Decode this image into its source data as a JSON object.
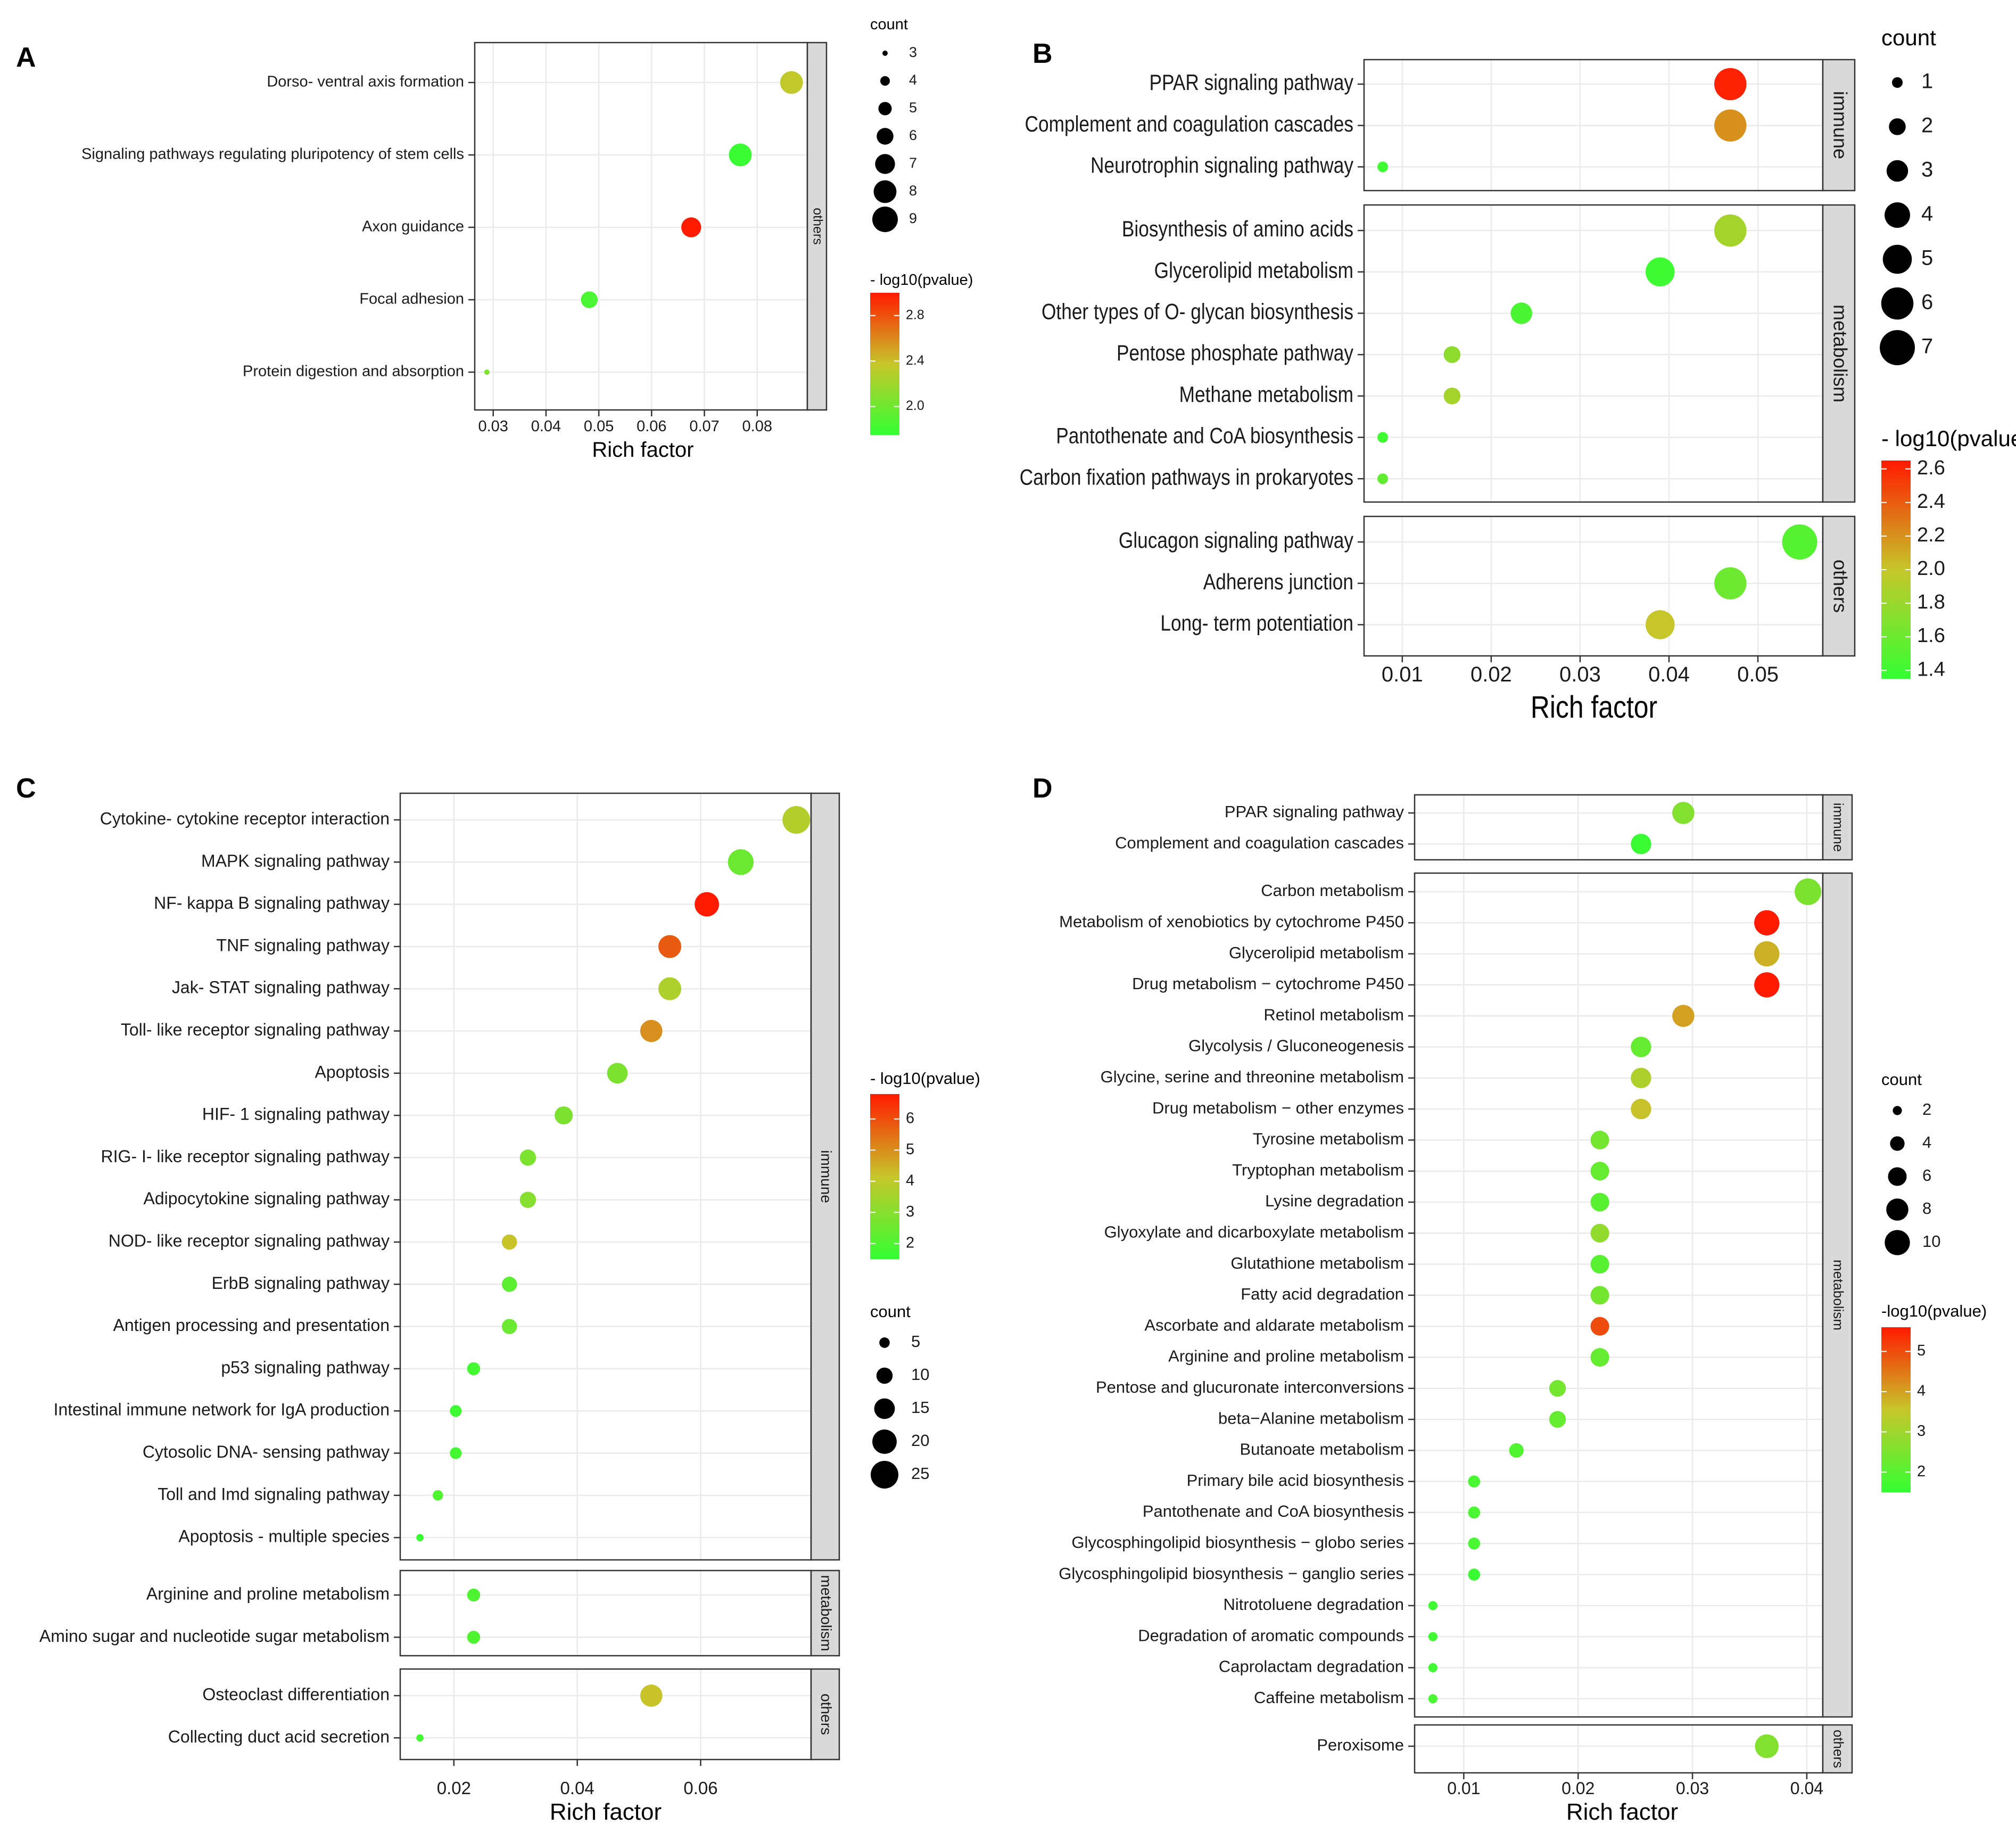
{
  "figure": {
    "colors": {
      "low": "#33FF33",
      "mid": "#C6C62A",
      "high": "#FF1A00",
      "panel_bg": "#FFFFFF",
      "grid": "#EBEBEB",
      "strip_bg": "#D9D9D9"
    }
  },
  "chart_data": [
    {
      "panel": "A",
      "type": "scatter",
      "xlabel": "Rich factor",
      "xlim": [
        0.0265,
        0.0895
      ],
      "xticks": [
        "0.03",
        "0.04",
        "0.05",
        "0.06",
        "0.07",
        "0.08"
      ],
      "size_legend_title": "count",
      "size_range": [
        3,
        9
      ],
      "size_legend": [
        "3",
        "4",
        "5",
        "6",
        "7",
        "8",
        "9"
      ],
      "color_legend_title": "- log10(pvalue)",
      "color_range": [
        1.75,
        3.0
      ],
      "color_legend": [
        "2.8",
        "2.4",
        "2.0"
      ],
      "facets": [
        {
          "label": "others",
          "rows": [
            {
              "term": "Dorso- ventral axis formation",
              "x": 0.0865,
              "count": 8,
              "p": 2.35
            },
            {
              "term": "Signaling pathways regulating pluripotency of stem cells",
              "x": 0.0768,
              "count": 8,
              "p": 1.78
            },
            {
              "term": "Axon guidance",
              "x": 0.0675,
              "count": 7,
              "p": 3.0
            },
            {
              "term": "Focal adhesion",
              "x": 0.0482,
              "count": 6,
              "p": 1.85
            },
            {
              "term": "Protein digestion and absorption",
              "x": 0.0288,
              "count": 3,
              "p": 2.05
            }
          ]
        }
      ]
    },
    {
      "panel": "B",
      "type": "scatter",
      "xlabel": "Rich factor",
      "xlim": [
        0.0057,
        0.0573
      ],
      "xticks": [
        "0.01",
        "0.02",
        "0.03",
        "0.04",
        "0.05"
      ],
      "size_legend_title": "count",
      "size_range": [
        1,
        7
      ],
      "size_legend": [
        "1",
        "2",
        "3",
        "4",
        "5",
        "6",
        "7"
      ],
      "color_legend_title": "- log10(pvalue)",
      "color_range": [
        1.35,
        2.65
      ],
      "color_legend": [
        "2.6",
        "2.4",
        "2.2",
        "2.0",
        "1.8",
        "1.6",
        "1.4"
      ],
      "facets": [
        {
          "label": "immune",
          "rows": [
            {
              "term": "PPAR signaling pathway",
              "x": 0.0469,
              "count": 6,
              "p": 2.62
            },
            {
              "term": "Complement and coagulation cascades",
              "x": 0.0469,
              "count": 6,
              "p": 2.2
            },
            {
              "term": "Neurotrophin signaling pathway",
              "x": 0.0078,
              "count": 1,
              "p": 1.4
            }
          ]
        },
        {
          "label": "metabolism",
          "rows": [
            {
              "term": "Biosynthesis of amino acids",
              "x": 0.0469,
              "count": 6,
              "p": 1.85
            },
            {
              "term": "Glycerolipid metabolism",
              "x": 0.039,
              "count": 5,
              "p": 1.4
            },
            {
              "term": "Other types of O- glycan biosynthesis",
              "x": 0.0234,
              "count": 3,
              "p": 1.45
            },
            {
              "term": "Pentose phosphate pathway",
              "x": 0.0156,
              "count": 2,
              "p": 1.75
            },
            {
              "term": "Methane metabolism",
              "x": 0.0156,
              "count": 2,
              "p": 1.85
            },
            {
              "term": "Pantothenate and CoA biosynthesis",
              "x": 0.0078,
              "count": 1,
              "p": 1.4
            },
            {
              "term": "Carbon fixation pathways in prokaryotes",
              "x": 0.0078,
              "count": 1,
              "p": 1.55
            }
          ]
        },
        {
          "label": "others",
          "rows": [
            {
              "term": "Glucagon signaling pathway",
              "x": 0.0547,
              "count": 7,
              "p": 1.5
            },
            {
              "term": "Adherens junction",
              "x": 0.0469,
              "count": 6,
              "p": 1.6
            },
            {
              "term": "Long- term potentiation",
              "x": 0.039,
              "count": 5,
              "p": 2.0
            }
          ]
        }
      ]
    },
    {
      "panel": "C",
      "type": "scatter",
      "xlabel": "Rich factor",
      "xlim": [
        0.0113,
        0.0779
      ],
      "xticks": [
        "0.02",
        "0.04",
        "0.06"
      ],
      "size_legend_title": "count",
      "size_range": [
        2,
        25
      ],
      "size_legend": [
        "5",
        "10",
        "15",
        "20",
        "25"
      ],
      "color_legend_title": "- log10(pvalue)",
      "color_range": [
        1.5,
        6.8
      ],
      "color_legend": [
        "6",
        "5",
        "4",
        "3",
        "2"
      ],
      "facets": [
        {
          "label": "immune",
          "rows": [
            {
              "term": "Cytokine- cytokine receptor interaction",
              "x": 0.0755,
              "count": 25,
              "p": 3.8
            },
            {
              "term": "MAPK signaling pathway",
              "x": 0.0665,
              "count": 22,
              "p": 2.5
            },
            {
              "term": "NF- kappa B signaling pathway",
              "x": 0.061,
              "count": 20,
              "p": 6.8
            },
            {
              "term": "TNF signaling pathway",
              "x": 0.055,
              "count": 18,
              "p": 5.8
            },
            {
              "term": "Jak- STAT signaling pathway",
              "x": 0.055,
              "count": 18,
              "p": 3.7
            },
            {
              "term": "Toll- like receptor signaling pathway",
              "x": 0.052,
              "count": 17,
              "p": 5.0
            },
            {
              "term": "Apoptosis",
              "x": 0.0465,
              "count": 15,
              "p": 2.8
            },
            {
              "term": "HIF- 1 signaling pathway",
              "x": 0.0378,
              "count": 12,
              "p": 2.8
            },
            {
              "term": "RIG- I- like receptor signaling pathway",
              "x": 0.032,
              "count": 10,
              "p": 2.8
            },
            {
              "term": "Adipocytokine signaling pathway",
              "x": 0.032,
              "count": 10,
              "p": 3.0
            },
            {
              "term": "NOD- like receptor signaling pathway",
              "x": 0.029,
              "count": 9,
              "p": 4.2
            },
            {
              "term": "ErbB signaling pathway",
              "x": 0.029,
              "count": 9,
              "p": 2.2
            },
            {
              "term": "Antigen processing and presentation",
              "x": 0.029,
              "count": 9,
              "p": 2.5
            },
            {
              "term": "p53 signaling pathway",
              "x": 0.0232,
              "count": 7,
              "p": 1.8
            },
            {
              "term": "Intestinal immune network for IgA production",
              "x": 0.0203,
              "count": 6,
              "p": 1.7
            },
            {
              "term": "Cytosolic DNA- sensing pathway",
              "x": 0.0203,
              "count": 6,
              "p": 1.8
            },
            {
              "term": "Toll and Imd signaling pathway",
              "x": 0.0174,
              "count": 5,
              "p": 2.0
            },
            {
              "term": "Apoptosis -  multiple species",
              "x": 0.0145,
              "count": 3,
              "p": 1.6
            }
          ]
        },
        {
          "label": "metabolism",
          "rows": [
            {
              "term": "Arginine and proline metabolism",
              "x": 0.0232,
              "count": 7,
              "p": 2.0
            },
            {
              "term": "Amino sugar and nucleotide sugar metabolism",
              "x": 0.0232,
              "count": 7,
              "p": 2.0
            }
          ]
        },
        {
          "label": "others",
          "rows": [
            {
              "term": "Osteoclast differentiation",
              "x": 0.052,
              "count": 17,
              "p": 4.2
            },
            {
              "term": "Collecting duct acid secretion",
              "x": 0.0145,
              "count": 3,
              "p": 1.8
            }
          ]
        }
      ]
    },
    {
      "panel": "D",
      "type": "scatter",
      "xlabel": "Rich factor",
      "xlim": [
        0.0057,
        0.0414
      ],
      "xticks": [
        "0.01",
        "0.02",
        "0.03",
        "0.04"
      ],
      "size_legend_title": "count",
      "size_range": [
        1,
        11
      ],
      "size_legend": [
        "2",
        "4",
        "6",
        "8",
        "10"
      ],
      "color_legend_title": "-log10(pvalue)",
      "color_range": [
        1.5,
        5.6
      ],
      "color_legend": [
        "5",
        "4",
        "3",
        "2"
      ],
      "facets": [
        {
          "label": "immune",
          "rows": [
            {
              "term": "PPAR signaling pathway",
              "x": 0.0292,
              "count": 8,
              "p": 2.6
            },
            {
              "term": "Complement and coagulation cascades",
              "x": 0.0255,
              "count": 7,
              "p": 1.6
            }
          ]
        },
        {
          "label": "metabolism",
          "rows": [
            {
              "term": "Carbon metabolism",
              "x": 0.0401,
              "count": 11,
              "p": 2.5
            },
            {
              "term": "Metabolism of xenobiotics by cytochrome P450",
              "x": 0.0365,
              "count": 10,
              "p": 5.6
            },
            {
              "term": "Glycerolipid metabolism",
              "x": 0.0365,
              "count": 10,
              "p": 3.8
            },
            {
              "term": "Drug metabolism − cytochrome P450",
              "x": 0.0365,
              "count": 10,
              "p": 5.6
            },
            {
              "term": "Retinol metabolism",
              "x": 0.0292,
              "count": 8,
              "p": 4.0
            },
            {
              "term": "Glycolysis / Gluconeogenesis",
              "x": 0.0255,
              "count": 7,
              "p": 2.2
            },
            {
              "term": "Glycine, serine and threonine metabolism",
              "x": 0.0255,
              "count": 7,
              "p": 3.2
            },
            {
              "term": "Drug metabolism − other enzymes",
              "x": 0.0255,
              "count": 7,
              "p": 3.6
            },
            {
              "term": "Tyrosine metabolism",
              "x": 0.0219,
              "count": 6,
              "p": 2.4
            },
            {
              "term": "Tryptophan metabolism",
              "x": 0.0219,
              "count": 6,
              "p": 2.2
            },
            {
              "term": "Lysine degradation",
              "x": 0.0219,
              "count": 6,
              "p": 2.0
            },
            {
              "term": "Glyoxylate and dicarboxylate metabolism",
              "x": 0.0219,
              "count": 6,
              "p": 2.8
            },
            {
              "term": "Glutathione metabolism",
              "x": 0.0219,
              "count": 6,
              "p": 2.0
            },
            {
              "term": "Fatty acid degradation",
              "x": 0.0219,
              "count": 6,
              "p": 2.4
            },
            {
              "term": "Ascorbate and aldarate metabolism",
              "x": 0.0219,
              "count": 6,
              "p": 5.0
            },
            {
              "term": "Arginine and proline metabolism",
              "x": 0.0219,
              "count": 6,
              "p": 2.2
            },
            {
              "term": "Pentose and glucuronate interconversions",
              "x": 0.0182,
              "count": 5,
              "p": 2.4
            },
            {
              "term": "beta−Alanine metabolism",
              "x": 0.0182,
              "count": 5,
              "p": 2.2
            },
            {
              "term": "Butanoate metabolism",
              "x": 0.0146,
              "count": 4,
              "p": 1.9
            },
            {
              "term": "Primary bile acid biosynthesis",
              "x": 0.0109,
              "count": 3,
              "p": 1.8
            },
            {
              "term": "Pantothenate and CoA biosynthesis",
              "x": 0.0109,
              "count": 3,
              "p": 1.8
            },
            {
              "term": "Glycosphingolipid biosynthesis − globo series",
              "x": 0.0109,
              "count": 3,
              "p": 1.8
            },
            {
              "term": "Glycosphingolipid biosynthesis − ganglio series",
              "x": 0.0109,
              "count": 3,
              "p": 1.6
            },
            {
              "term": "Nitrotoluene degradation",
              "x": 0.0073,
              "count": 2,
              "p": 1.7
            },
            {
              "term": "Degradation of aromatic compounds",
              "x": 0.0073,
              "count": 2,
              "p": 1.7
            },
            {
              "term": "Caprolactam degradation",
              "x": 0.0073,
              "count": 2,
              "p": 1.7
            },
            {
              "term": "Caffeine metabolism",
              "x": 0.0073,
              "count": 2,
              "p": 1.8
            }
          ]
        },
        {
          "label": "others",
          "rows": [
            {
              "term": "Peroxisome",
              "x": 0.0365,
              "count": 9,
              "p": 2.6
            }
          ]
        }
      ]
    }
  ]
}
